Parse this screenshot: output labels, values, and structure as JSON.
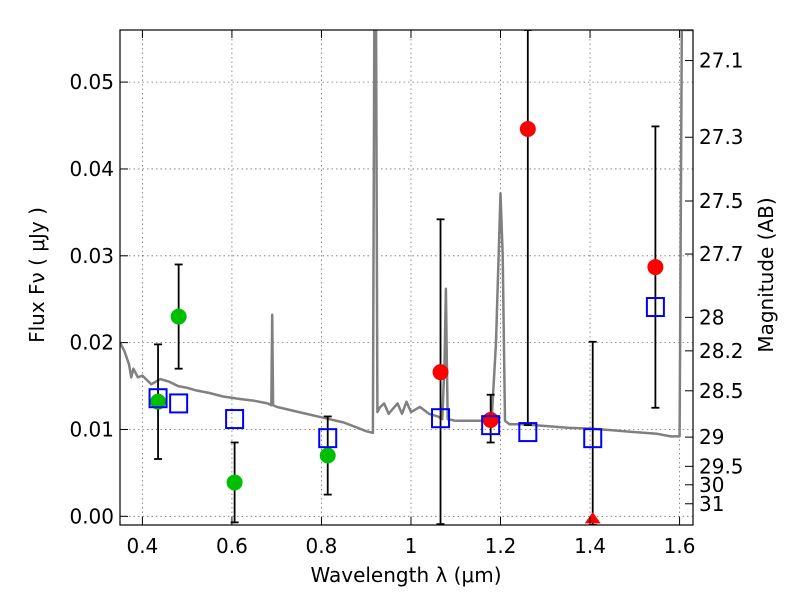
{
  "chart_data": {
    "type": "scatter",
    "xlabel": "Wavelength  λ (μm)",
    "ylabel": "Flux  Fν  ( μJy )",
    "ylabel_right": "Magnitude (AB)",
    "xlim": [
      0.35,
      1.63
    ],
    "ylim": [
      -0.001,
      0.056
    ],
    "grid": true,
    "x_ticks": [
      0.4,
      0.6,
      0.8,
      1.0,
      1.2,
      1.4,
      1.6
    ],
    "x_tick_labels": [
      "0.4",
      "0.6",
      "0.8",
      "1",
      "1.2",
      "1.4",
      "1.6"
    ],
    "y_ticks": [
      0.0,
      0.01,
      0.02,
      0.03,
      0.04,
      0.05
    ],
    "y_tick_labels": [
      "0.00",
      "0.01",
      "0.02",
      "0.03",
      "0.04",
      "0.05"
    ],
    "mag_ticks": [
      {
        "label": "27.1",
        "mag": 27.1
      },
      {
        "label": "27.3",
        "mag": 27.3
      },
      {
        "label": "27.5",
        "mag": 27.5
      },
      {
        "label": "27.7",
        "mag": 27.7
      },
      {
        "label": "28",
        "mag": 28.0
      },
      {
        "label": "28.2",
        "mag": 28.2
      },
      {
        "label": "28.5",
        "mag": 28.5
      },
      {
        "label": "29",
        "mag": 29.0
      },
      {
        "label": "29.5",
        "mag": 29.5
      },
      {
        "label": "30",
        "mag": 30.0
      },
      {
        "label": "31",
        "mag": 31.0
      }
    ],
    "model_spectrum": {
      "name": "model SED",
      "color": "#808080",
      "x": [
        0.35,
        0.36,
        0.37,
        0.375,
        0.38,
        0.39,
        0.4,
        0.42,
        0.44,
        0.46,
        0.48,
        0.5,
        0.52,
        0.55,
        0.58,
        0.62,
        0.65,
        0.68,
        0.688,
        0.69,
        0.692,
        0.7,
        0.75,
        0.8,
        0.85,
        0.88,
        0.9,
        0.915,
        0.918,
        0.92,
        0.922,
        0.925,
        0.93,
        0.94,
        0.95,
        0.97,
        0.98,
        0.99,
        1.0,
        1.02,
        1.04,
        1.06,
        1.07,
        1.075,
        1.078,
        1.08,
        1.082,
        1.09,
        1.1,
        1.15,
        1.18,
        1.19,
        1.2,
        1.205,
        1.21,
        1.22,
        1.25,
        1.3,
        1.35,
        1.4,
        1.45,
        1.5,
        1.55,
        1.58,
        1.6,
        1.605,
        1.61,
        1.63
      ],
      "y": [
        0.02,
        0.019,
        0.0175,
        0.016,
        0.017,
        0.016,
        0.0162,
        0.0152,
        0.0158,
        0.0155,
        0.015,
        0.0148,
        0.0145,
        0.0142,
        0.0138,
        0.0135,
        0.0133,
        0.013,
        0.0128,
        0.0232,
        0.0128,
        0.0126,
        0.012,
        0.0114,
        0.0108,
        0.0102,
        0.0098,
        0.0096,
        0.056,
        0.056,
        0.056,
        0.012,
        0.0125,
        0.013,
        0.0118,
        0.013,
        0.0118,
        0.0132,
        0.012,
        0.0126,
        0.0118,
        0.0115,
        0.0112,
        0.018,
        0.0262,
        0.018,
        0.0112,
        0.0111,
        0.011,
        0.011,
        0.011,
        0.02,
        0.0372,
        0.03,
        0.011,
        0.0106,
        0.0106,
        0.0104,
        0.0102,
        0.0101,
        0.0099,
        0.0097,
        0.0095,
        0.0092,
        0.0092,
        0.056,
        0.056,
        0.056
      ]
    },
    "series": [
      {
        "name": "green points",
        "color": "#00bf00",
        "marker": "circle",
        "points": [
          {
            "x": 0.435,
            "y": 0.0132,
            "err_lo": 0.0066,
            "err_hi": 0.0198
          },
          {
            "x": 0.481,
            "y": 0.023,
            "err_lo": 0.017,
            "err_hi": 0.029
          },
          {
            "x": 0.606,
            "y": 0.0039,
            "err_lo": -0.0007,
            "err_hi": 0.0085
          },
          {
            "x": 0.814,
            "y": 0.007,
            "err_lo": 0.0025,
            "err_hi": 0.0115
          }
        ]
      },
      {
        "name": "red points",
        "color": "#ff0000",
        "marker": "circle",
        "points": [
          {
            "x": 1.066,
            "y": 0.0166,
            "err_lo": -0.0009,
            "err_hi": 0.0342
          },
          {
            "x": 1.178,
            "y": 0.0111,
            "err_lo": 0.0085,
            "err_hi": 0.014
          },
          {
            "x": 1.261,
            "y": 0.0446,
            "err_lo": 0.0105,
            "err_hi": 0.056
          },
          {
            "x": 1.546,
            "y": 0.0287,
            "err_lo": 0.0125,
            "err_hi": 0.0449
          }
        ]
      },
      {
        "name": "red upper limit",
        "color": "#ff0000",
        "marker": "triangle",
        "points": [
          {
            "x": 1.406,
            "y": -0.0003,
            "err_lo": -0.001,
            "err_hi": 0.0201
          }
        ]
      },
      {
        "name": "model photometry",
        "color": "#0000ff",
        "marker": "square",
        "points": [
          {
            "x": 0.435,
            "y": 0.0136
          },
          {
            "x": 0.481,
            "y": 0.013
          },
          {
            "x": 0.606,
            "y": 0.0112
          },
          {
            "x": 0.814,
            "y": 0.009
          },
          {
            "x": 1.066,
            "y": 0.0113
          },
          {
            "x": 1.178,
            "y": 0.0105
          },
          {
            "x": 1.261,
            "y": 0.0097
          },
          {
            "x": 1.406,
            "y": 0.009
          },
          {
            "x": 1.546,
            "y": 0.0241
          }
        ]
      }
    ]
  }
}
